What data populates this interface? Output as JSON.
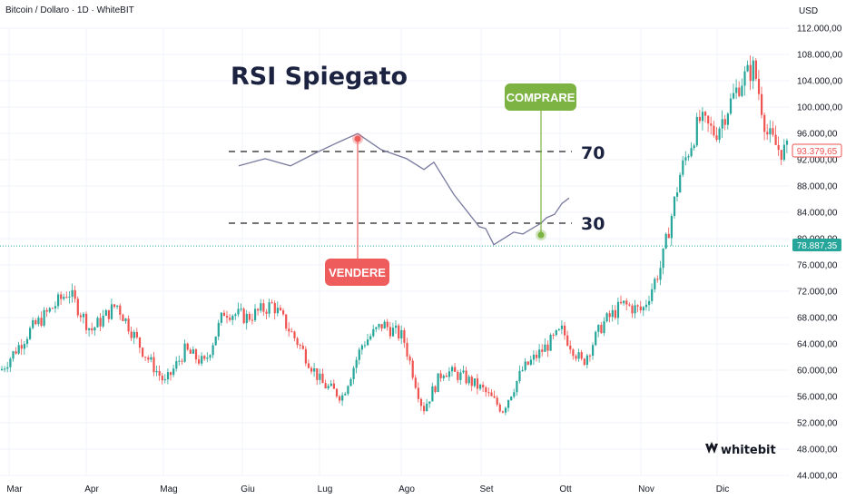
{
  "header": {
    "symbol": "Bitcoin / Dollaro · 1D · WhiteBIT",
    "currency": "USD"
  },
  "title": "RSI Spiegato",
  "rsi_levels": {
    "upper": "70",
    "lower": "30"
  },
  "callouts": {
    "sell": "VENDERE",
    "buy": "COMPRARE"
  },
  "logo": "whitebit",
  "price_tags": {
    "current": {
      "label": "93.379,65",
      "value": 93379.65
    },
    "line": {
      "label": "78.887,35",
      "value": 78887.35
    }
  },
  "colors": {
    "up": "#26a69a",
    "down": "#ef5350",
    "sell": "#ef5c5c",
    "buy": "#7cb342",
    "title": "#1c2340",
    "rsi_line": "#787b9e"
  },
  "chart_data": {
    "type": "candlestick",
    "title": "",
    "y_axis": {
      "ticks": [
        "112.000,00",
        "108.000,00",
        "104.000,00",
        "100.000,00",
        "96.000,00",
        "92.000,00",
        "88.000,00",
        "84.000,00",
        "80.000,00",
        "76.000,00",
        "72.000,00",
        "68.000,00",
        "64.000,00",
        "60.000,00",
        "56.000,00",
        "52.000,00",
        "48.000,00",
        "44.000,00"
      ],
      "range": [
        44000,
        112000
      ]
    },
    "x_axis": {
      "ticks": [
        "Mar",
        "Apr",
        "Mag",
        "Giu",
        "Lug",
        "Ago",
        "Set",
        "Ott",
        "Nov",
        "Dic"
      ]
    },
    "close_path": [
      {
        "m": "Mar",
        "v": 62000
      },
      {
        "m": "Mar",
        "v": 66000
      },
      {
        "m": "Mar",
        "v": 69000
      },
      {
        "m": "Mar",
        "v": 72000
      },
      {
        "m": "Apr",
        "v": 66000
      },
      {
        "m": "Apr",
        "v": 70000
      },
      {
        "m": "Apr",
        "v": 63000
      },
      {
        "m": "Mag",
        "v": 58000
      },
      {
        "m": "Mag",
        "v": 63000
      },
      {
        "m": "Mag",
        "v": 61000
      },
      {
        "m": "Mag",
        "v": 69000
      },
      {
        "m": "Giu",
        "v": 68000
      },
      {
        "m": "Giu",
        "v": 70000
      },
      {
        "m": "Giu",
        "v": 64000
      },
      {
        "m": "Lug",
        "v": 58000
      },
      {
        "m": "Lug",
        "v": 56000
      },
      {
        "m": "Lug",
        "v": 64000
      },
      {
        "m": "Lug",
        "v": 67000
      },
      {
        "m": "Ago",
        "v": 65000
      },
      {
        "m": "Ago",
        "v": 54000
      },
      {
        "m": "Ago",
        "v": 60000
      },
      {
        "m": "Ago",
        "v": 59000
      },
      {
        "m": "Set",
        "v": 57000
      },
      {
        "m": "Set",
        "v": 54000
      },
      {
        "m": "Set",
        "v": 60000
      },
      {
        "m": "Set",
        "v": 63000
      },
      {
        "m": "Ott",
        "v": 66000
      },
      {
        "m": "Ott",
        "v": 61000
      },
      {
        "m": "Ott",
        "v": 67000
      },
      {
        "m": "Ott",
        "v": 70000
      },
      {
        "m": "Nov",
        "v": 69000
      },
      {
        "m": "Nov",
        "v": 76000
      },
      {
        "m": "Nov",
        "v": 90000
      },
      {
        "m": "Nov",
        "v": 98000
      },
      {
        "m": "Dic",
        "v": 96000
      },
      {
        "m": "Dic",
        "v": 100000
      },
      {
        "m": "Dic",
        "v": 104000
      },
      {
        "m": "Dic",
        "v": 106000
      },
      {
        "m": "Dic",
        "v": 96000
      },
      {
        "m": "Dic",
        "v": 93379.65
      }
    ],
    "rsi_illustration": {
      "levels": [
        70,
        30
      ],
      "values": [
        62,
        66,
        62,
        69,
        75,
        80,
        71,
        66,
        60,
        64,
        46,
        28,
        27,
        18,
        25,
        24,
        30,
        33,
        35,
        41,
        44
      ],
      "sell_point_index": 5,
      "buy_point_index": 16
    }
  }
}
